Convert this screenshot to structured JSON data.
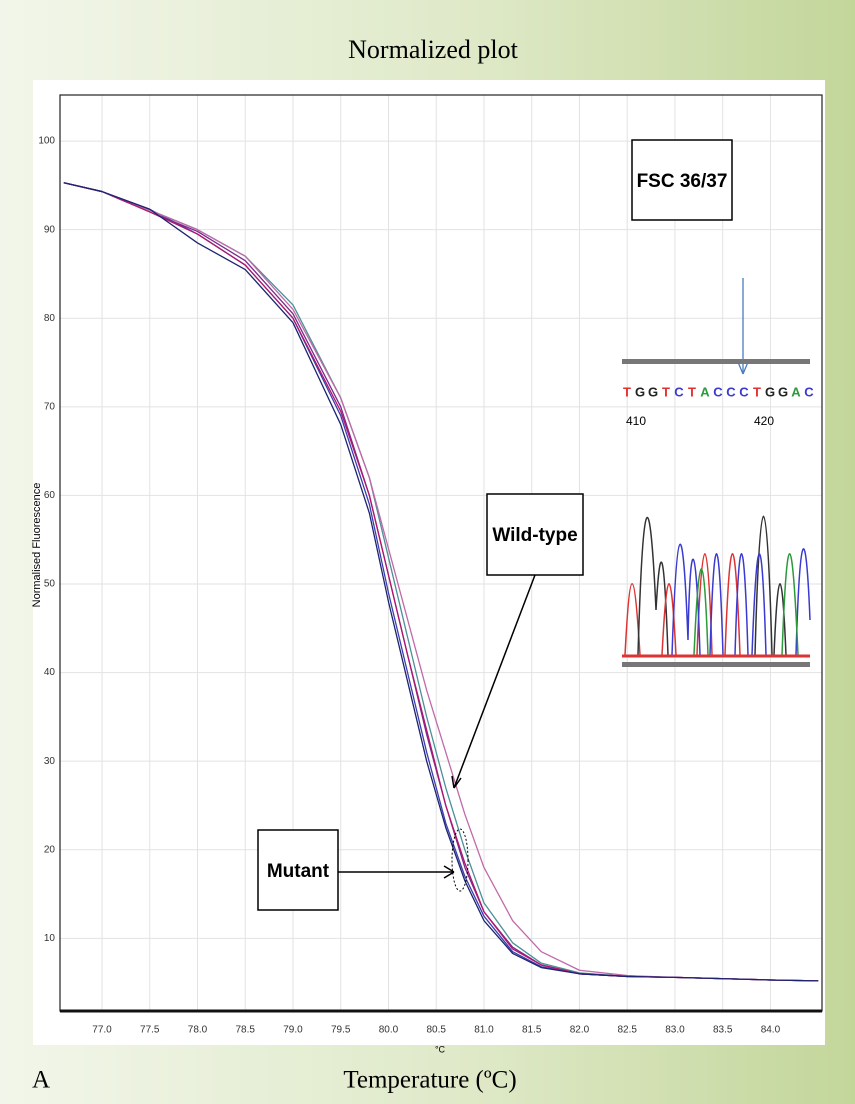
{
  "chart_data": {
    "type": "line",
    "title": "Normalized plot",
    "xlabel": "Temperature (ºC)",
    "x_unit": "°C",
    "ylabel": "Normalised Fluorescence",
    "panel_label": "A",
    "annotations": [
      "FSC 36/37",
      "Wild-type",
      "Mutant"
    ],
    "inset": {
      "bases": [
        "T",
        "G",
        "G",
        "T",
        "C",
        "T",
        "A",
        "C",
        "C",
        "C",
        "T",
        "G",
        "G",
        "A",
        "C"
      ],
      "positions": [
        "410",
        "420"
      ]
    },
    "x": [
      76.6,
      77.0,
      77.5,
      78.0,
      78.5,
      79.0,
      79.5,
      79.8,
      80.0,
      80.2,
      80.4,
      80.6,
      80.8,
      81.0,
      81.3,
      81.6,
      82.0,
      82.5,
      83.0,
      84.0,
      84.5
    ],
    "series": [
      {
        "color": "#3b3fb0",
        "values": [
          95.3,
          94.3,
          92.3,
          89.5,
          86,
          80,
          69,
          59,
          49,
          40,
          31,
          23,
          17,
          12.5,
          8.5,
          6.8,
          6,
          5.7,
          5.6,
          5.3,
          5.2
        ]
      },
      {
        "color": "#7a2a8c",
        "values": [
          95.3,
          94.3,
          92,
          89.8,
          86.5,
          80.5,
          70,
          60,
          51,
          42,
          33,
          25,
          18,
          13,
          9,
          7,
          6,
          5.7,
          5.6,
          5.3,
          5.2
        ]
      },
      {
        "color": "#4b8f96",
        "values": [
          95.3,
          94.3,
          92.2,
          90,
          87,
          81.5,
          71,
          62,
          53,
          44,
          35,
          27,
          20,
          14,
          9.5,
          7.2,
          6.1,
          5.7,
          5.6,
          5.3,
          5.2
        ]
      },
      {
        "color": "#c06aa8",
        "values": [
          95.3,
          94.3,
          92.2,
          90,
          87,
          81,
          71,
          62,
          54,
          46,
          38,
          31,
          24,
          18,
          12,
          8.5,
          6.4,
          5.8,
          5.6,
          5.3,
          5.2
        ]
      },
      {
        "color": "#b0176e",
        "values": [
          95.3,
          94.3,
          92,
          89.5,
          86,
          80,
          69.5,
          60,
          51,
          42,
          33.5,
          25,
          18.5,
          13,
          8.8,
          7,
          6,
          5.7,
          5.6,
          5.3,
          5.2
        ]
      },
      {
        "color": "#1c2470",
        "values": [
          95.3,
          94.3,
          92.3,
          88.5,
          85.5,
          79.5,
          68,
          58,
          48,
          39,
          30,
          22.5,
          16.5,
          12,
          8.3,
          6.7,
          6,
          5.7,
          5.6,
          5.3,
          5.2
        ]
      }
    ],
    "xlim": [
      76.56,
      84.54
    ],
    "ylim": [
      1.8,
      105.2
    ],
    "xticks": [
      {
        "value": 77,
        "label": "77.0"
      },
      77.5,
      {
        "value": 78,
        "label": "78.0"
      },
      78.5,
      {
        "value": 79,
        "label": "79.0"
      },
      79.5,
      {
        "value": 80,
        "label": "80.0"
      },
      80.5,
      {
        "value": 81,
        "label": "81.0"
      },
      81.5,
      {
        "value": 82,
        "label": "82.0"
      },
      82.5,
      {
        "value": 83,
        "label": "83.0"
      },
      83.5,
      {
        "value": 84,
        "label": "84.0"
      }
    ],
    "yticks": [
      10,
      20,
      30,
      40,
      50,
      60,
      70,
      80,
      90,
      100
    ],
    "grid": true
  }
}
